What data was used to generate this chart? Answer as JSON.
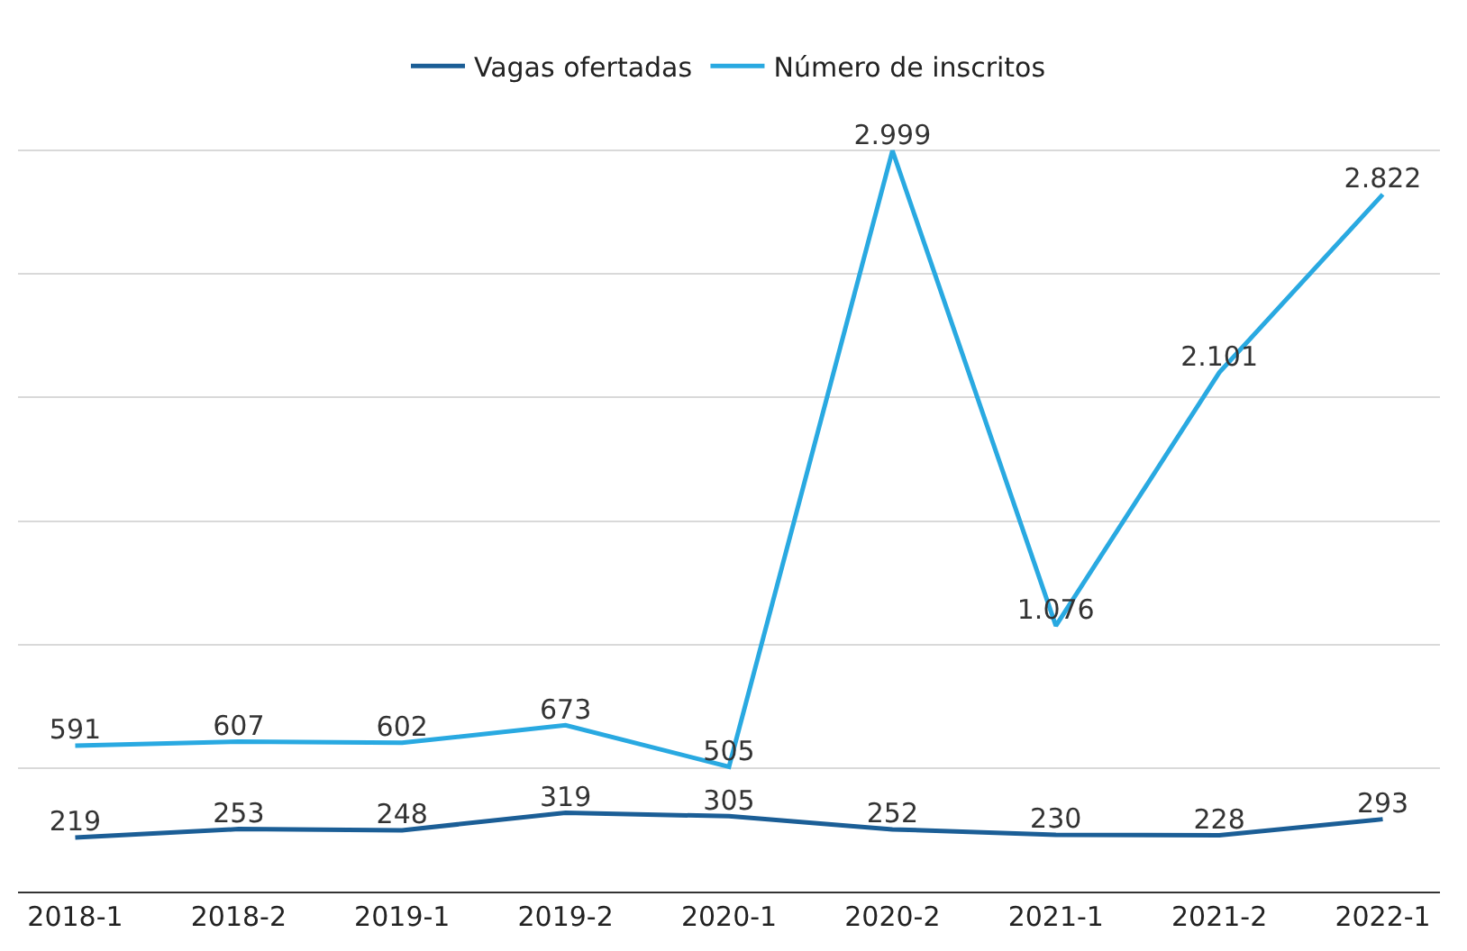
{
  "chart_data": {
    "type": "line",
    "categories": [
      "2018-1",
      "2018-2",
      "2019-1",
      "2019-2",
      "2020-1",
      "2020-2",
      "2021-1",
      "2021-2",
      "2022-1"
    ],
    "series": [
      {
        "name": "Vagas ofertadas",
        "color": "#1b5e96",
        "values": [
          219,
          253,
          248,
          319,
          305,
          252,
          230,
          228,
          293
        ],
        "value_labels": [
          "219",
          "253",
          "248",
          "319",
          "305",
          "252",
          "230",
          "228",
          "293"
        ]
      },
      {
        "name": "Número de inscritos",
        "color": "#29a9e1",
        "values": [
          591,
          607,
          602,
          673,
          505,
          2999,
          1076,
          2101,
          2822
        ],
        "value_labels": [
          "591",
          "607",
          "602",
          "673",
          "505",
          "2.999",
          "1.076",
          "2.101",
          "2.822"
        ]
      }
    ],
    "tick_labels": "x",
    "grid": "y",
    "legend": "top",
    "marker": "none",
    "line_style": "solid"
  }
}
